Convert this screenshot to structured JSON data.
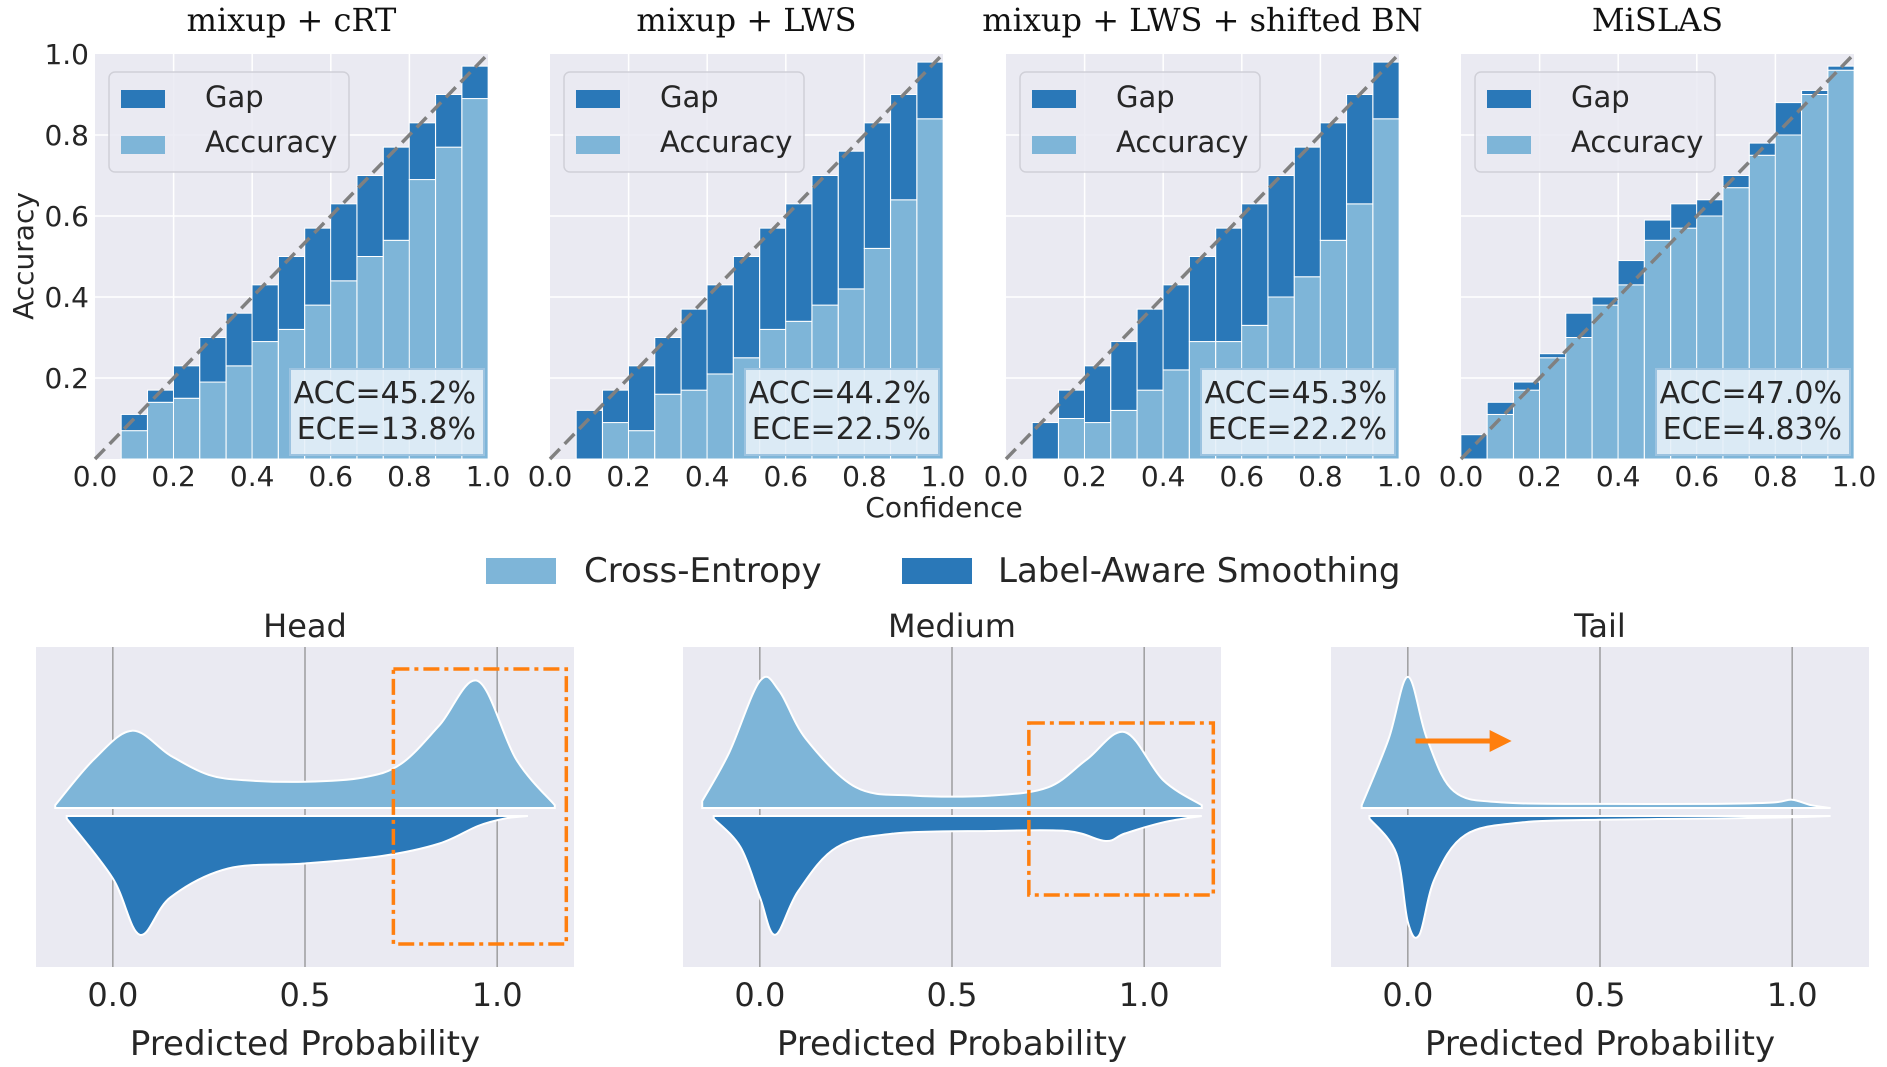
{
  "colors": {
    "light_blue": "#7eb5d8",
    "dark_blue": "#2a78b8",
    "panel_bg": "#eaeaf2",
    "grid": "#ffffff",
    "diagonal": "#808080",
    "box_orange": "#ff7f0e",
    "text": "#262626"
  },
  "calibration": {
    "ylabel": "Accuracy",
    "xlabel": "Confidence",
    "xticks": [
      "0.0",
      "0.2",
      "0.4",
      "0.6",
      "0.8",
      "1.0"
    ],
    "yticks": [
      "0.2",
      "0.4",
      "0.6",
      "0.8",
      "1.0"
    ],
    "legend": {
      "gap": "Gap",
      "accuracy": "Accuracy"
    }
  },
  "violin": {
    "legend": {
      "ce": "Cross-Entropy",
      "las": "Label-Aware Smoothing"
    },
    "xlabel": "Predicted Probability",
    "xticks": [
      "0.0",
      "0.5",
      "1.0"
    ]
  },
  "chart_data": [
    {
      "type": "bar",
      "title": "mixup + cRT",
      "xlabel": "Confidence",
      "ylabel": "Accuracy",
      "xlim": [
        0,
        1
      ],
      "ylim": [
        0,
        1
      ],
      "bin_centers": [
        0.1,
        0.167,
        0.233,
        0.3,
        0.367,
        0.433,
        0.5,
        0.567,
        0.633,
        0.7,
        0.767,
        0.833,
        0.9,
        0.967
      ],
      "series": [
        {
          "name": "Accuracy",
          "values": [
            0.07,
            0.14,
            0.15,
            0.19,
            0.23,
            0.29,
            0.32,
            0.38,
            0.44,
            0.5,
            0.54,
            0.69,
            0.77,
            0.89
          ]
        },
        {
          "name": "Gap",
          "values": [
            0.04,
            0.03,
            0.08,
            0.11,
            0.13,
            0.14,
            0.18,
            0.19,
            0.19,
            0.2,
            0.23,
            0.14,
            0.13,
            0.08
          ]
        }
      ],
      "annotation": [
        "ACC=45.2%",
        "ECE=13.8%"
      ]
    },
    {
      "type": "bar",
      "title": "mixup + LWS",
      "xlabel": "Confidence",
      "ylabel": "Accuracy",
      "xlim": [
        0,
        1
      ],
      "ylim": [
        0,
        1
      ],
      "bin_centers": [
        0.1,
        0.167,
        0.233,
        0.3,
        0.367,
        0.433,
        0.5,
        0.567,
        0.633,
        0.7,
        0.767,
        0.833,
        0.9,
        0.967
      ],
      "series": [
        {
          "name": "Accuracy",
          "values": [
            0.0,
            0.09,
            0.07,
            0.16,
            0.17,
            0.21,
            0.25,
            0.32,
            0.34,
            0.38,
            0.42,
            0.52,
            0.64,
            0.84
          ]
        },
        {
          "name": "Gap",
          "values": [
            0.12,
            0.08,
            0.16,
            0.14,
            0.2,
            0.22,
            0.25,
            0.25,
            0.29,
            0.32,
            0.34,
            0.31,
            0.26,
            0.14
          ]
        }
      ],
      "annotation": [
        "ACC=44.2%",
        "ECE=22.5%"
      ]
    },
    {
      "type": "bar",
      "title": "mixup + LWS + shifted BN",
      "xlabel": "Confidence",
      "ylabel": "Accuracy",
      "xlim": [
        0,
        1
      ],
      "ylim": [
        0,
        1
      ],
      "bin_centers": [
        0.1,
        0.167,
        0.233,
        0.3,
        0.367,
        0.433,
        0.5,
        0.567,
        0.633,
        0.7,
        0.767,
        0.833,
        0.9,
        0.967
      ],
      "series": [
        {
          "name": "Accuracy",
          "values": [
            0.0,
            0.1,
            0.09,
            0.12,
            0.17,
            0.22,
            0.29,
            0.29,
            0.33,
            0.4,
            0.45,
            0.54,
            0.63,
            0.84
          ]
        },
        {
          "name": "Gap",
          "values": [
            0.09,
            0.07,
            0.14,
            0.17,
            0.2,
            0.21,
            0.21,
            0.28,
            0.3,
            0.3,
            0.32,
            0.29,
            0.27,
            0.14
          ]
        }
      ],
      "annotation": [
        "ACC=45.3%",
        "ECE=22.2%"
      ]
    },
    {
      "type": "bar",
      "title": "MiSLAS",
      "xlabel": "Confidence",
      "ylabel": "Accuracy",
      "xlim": [
        0,
        1
      ],
      "ylim": [
        0,
        1
      ],
      "bin_centers": [
        0.033,
        0.1,
        0.167,
        0.233,
        0.3,
        0.367,
        0.433,
        0.5,
        0.567,
        0.633,
        0.7,
        0.767,
        0.833,
        0.9,
        0.967
      ],
      "series": [
        {
          "name": "Accuracy",
          "values": [
            0.0,
            0.11,
            0.17,
            0.25,
            0.3,
            0.38,
            0.43,
            0.54,
            0.57,
            0.6,
            0.67,
            0.75,
            0.8,
            0.9,
            0.96
          ]
        },
        {
          "name": "Gap",
          "values": [
            0.06,
            0.03,
            0.02,
            0.01,
            0.06,
            0.02,
            0.06,
            0.05,
            0.06,
            0.04,
            0.03,
            0.03,
            0.08,
            0.01,
            0.01
          ]
        }
      ],
      "annotation": [
        "ACC=47.0%",
        "ECE=4.83%"
      ]
    },
    {
      "type": "area",
      "title": "Head",
      "xlabel": "Predicted Probability",
      "xlim": [
        -0.2,
        1.2
      ],
      "series": [
        {
          "name": "Cross-Entropy",
          "x": [
            -0.15,
            -0.05,
            0.05,
            0.15,
            0.25,
            0.35,
            0.5,
            0.65,
            0.75,
            0.85,
            0.95,
            1.05,
            1.15
          ],
          "density": [
            0.02,
            0.35,
            0.56,
            0.38,
            0.24,
            0.2,
            0.19,
            0.22,
            0.32,
            0.6,
            0.92,
            0.35,
            0.02
          ]
        },
        {
          "name": "Label-Aware Smoothing",
          "x": [
            -0.12,
            0.0,
            0.07,
            0.15,
            0.3,
            0.5,
            0.7,
            0.85,
            0.95,
            1.02,
            1.08
          ],
          "density": [
            0.02,
            0.5,
            0.95,
            0.65,
            0.42,
            0.38,
            0.32,
            0.22,
            0.08,
            0.02,
            0.0
          ]
        }
      ],
      "highlight_box": [
        0.73,
        1.18
      ]
    },
    {
      "type": "area",
      "title": "Medium",
      "xlabel": "Predicted Probability",
      "xlim": [
        -0.2,
        1.2
      ],
      "series": [
        {
          "name": "Cross-Entropy",
          "x": [
            -0.15,
            -0.08,
            0.0,
            0.05,
            0.12,
            0.25,
            0.4,
            0.6,
            0.75,
            0.85,
            0.95,
            1.05,
            1.15
          ],
          "density": [
            0.05,
            0.4,
            0.92,
            0.85,
            0.5,
            0.15,
            0.09,
            0.09,
            0.15,
            0.35,
            0.55,
            0.2,
            0.02
          ]
        },
        {
          "name": "Label-Aware Smoothing",
          "x": [
            -0.12,
            -0.05,
            0.0,
            0.04,
            0.1,
            0.2,
            0.35,
            0.6,
            0.8,
            0.9,
            0.95,
            1.05,
            1.15
          ],
          "density": [
            0.02,
            0.25,
            0.65,
            0.95,
            0.6,
            0.25,
            0.14,
            0.12,
            0.12,
            0.2,
            0.14,
            0.05,
            0.0
          ]
        }
      ],
      "highlight_box": [
        0.7,
        1.18
      ]
    },
    {
      "type": "area",
      "title": "Tail",
      "xlabel": "Predicted Probability",
      "xlim": [
        -0.2,
        1.2
      ],
      "series": [
        {
          "name": "Cross-Entropy",
          "x": [
            -0.12,
            -0.05,
            0.0,
            0.05,
            0.12,
            0.25,
            0.5,
            0.8,
            0.95,
            1.0,
            1.05,
            1.1
          ],
          "density": [
            0.02,
            0.5,
            0.95,
            0.5,
            0.12,
            0.04,
            0.03,
            0.03,
            0.04,
            0.06,
            0.02,
            0.0
          ]
        },
        {
          "name": "Label-Aware Smoothing",
          "x": [
            -0.1,
            -0.03,
            0.0,
            0.03,
            0.07,
            0.15,
            0.3,
            0.5,
            0.8,
            1.0,
            1.1
          ],
          "density": [
            0.02,
            0.3,
            0.85,
            0.95,
            0.5,
            0.15,
            0.05,
            0.03,
            0.02,
            0.01,
            0.0
          ]
        }
      ]
    }
  ]
}
